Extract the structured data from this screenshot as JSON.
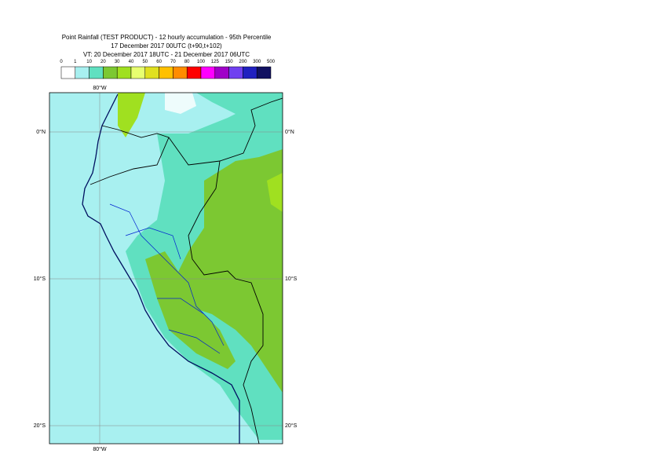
{
  "title": [
    "Point Rainfall (TEST PRODUCT) - 12 hourly accumulation - 95th Percentile",
    "17 December 2017 00UTC (t+90,t+102)",
    "VT: 20 December 2017 18UTC - 21 December 2017 06UTC"
  ],
  "legend": {
    "bounds": [
      0,
      1,
      10,
      20,
      30,
      40,
      50,
      60,
      70,
      80,
      100,
      125,
      150,
      200,
      300,
      500
    ],
    "colors": [
      "#ffffff",
      "#a8f0f0",
      "#60e0c0",
      "#7cc832",
      "#a0e020",
      "#e8ff70",
      "#e0e020",
      "#ffc000",
      "#ff8c00",
      "#ff0000",
      "#ff00ff",
      "#a000c8",
      "#7040f0",
      "#2020c0",
      "#101060"
    ]
  },
  "lon_labels": [
    "80°W",
    "80°W"
  ],
  "lat_labels": [
    "0°N",
    "10°S",
    "20°S"
  ]
}
